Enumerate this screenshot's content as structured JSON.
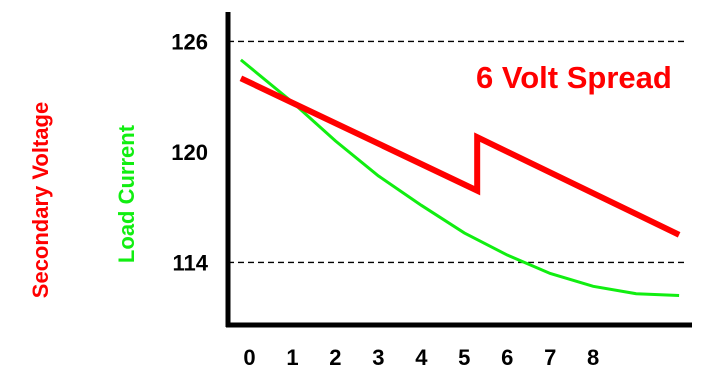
{
  "chart_data": {
    "type": "line",
    "annotation": "6 Volt Spread",
    "y_tick_labels": [
      "126",
      "120",
      "114"
    ],
    "x_tick_labels": [
      "0",
      "1",
      "2",
      "3",
      "4",
      "5",
      "6",
      "7",
      "8"
    ],
    "ylabel_primary": "Secondary Voltage",
    "ylabel_secondary": "Load Current",
    "xlim": [
      -0.5,
      10.3
    ],
    "ylim": [
      110.6,
      127.6
    ],
    "reference_lines": [
      126,
      114
    ],
    "grid": false,
    "series": [
      {
        "name": "Secondary Voltage",
        "color": "#ff0000",
        "x": [
          -0.2,
          5.3,
          5.3,
          10.0
        ],
        "y": [
          124.0,
          117.9,
          120.8,
          115.5
        ]
      },
      {
        "name": "Load Current",
        "color": "#11ee11",
        "x": [
          -0.2,
          1.0,
          2.0,
          3.0,
          4.0,
          5.0,
          6.0,
          7.0,
          8.0,
          9.0,
          10.0
        ],
        "y": [
          125.0,
          122.7,
          120.6,
          118.7,
          117.1,
          115.6,
          114.4,
          113.4,
          112.7,
          112.3,
          112.2
        ]
      }
    ]
  }
}
